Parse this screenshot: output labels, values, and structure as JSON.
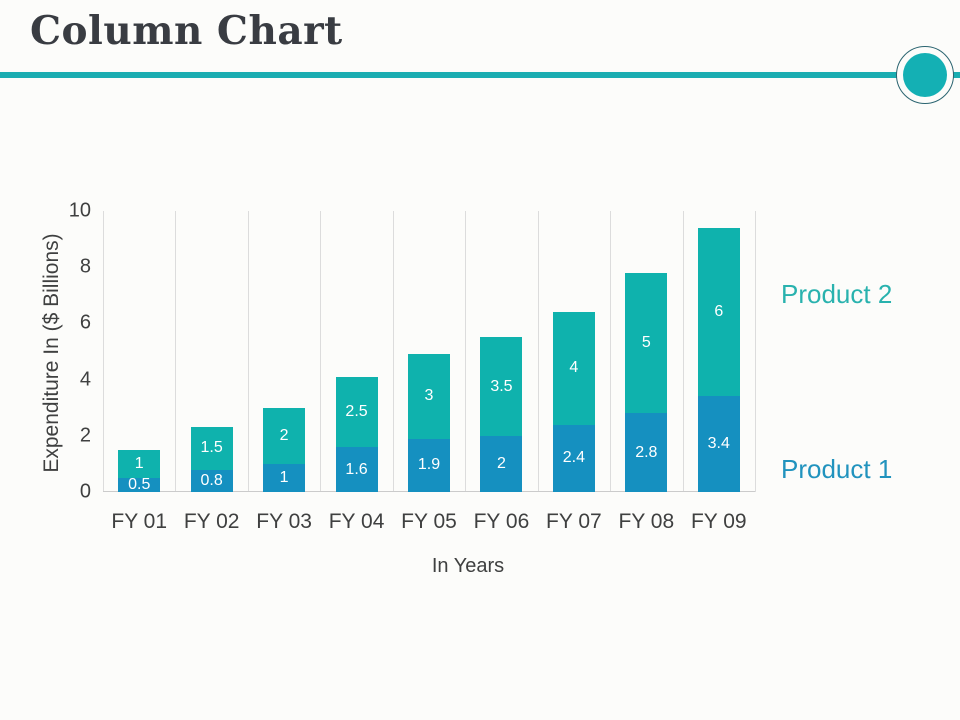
{
  "slide": {
    "title": "Column Chart",
    "accent_color": "#1aadb1",
    "ornament_fill_color": "#14b0b4",
    "ornament_ring_color": "#2a6470"
  },
  "chart_data": {
    "type": "bar",
    "stacked": true,
    "categories": [
      "FY 01",
      "FY 02",
      "FY 03",
      "FY 04",
      "FY 05",
      "FY 06",
      "FY 07",
      "FY 08",
      "FY 09"
    ],
    "series": [
      {
        "name": "Product 1",
        "color": "#1590c0",
        "label_color": "#2193be",
        "values": [
          0.5,
          0.8,
          1,
          1.6,
          1.9,
          2,
          2.4,
          2.8,
          3.4
        ]
      },
      {
        "name": "Product 2",
        "color": "#0fb2ad",
        "label_color": "#29b2ae",
        "values": [
          1,
          1.5,
          2,
          2.5,
          3,
          3.5,
          4,
          5,
          6
        ]
      }
    ],
    "xlabel": "In Years",
    "ylabel": "Expenditure In ($ Billions)",
    "ylim": [
      0,
      10
    ],
    "yticks": [
      0,
      2,
      4,
      6,
      8,
      10
    ],
    "grid": "vertical-category-lines",
    "legend_position": "right-of-plot",
    "value_labels": "white, inside segments",
    "gridline_color": "#dcdcdc",
    "axis_text_color": "#3f4040"
  }
}
